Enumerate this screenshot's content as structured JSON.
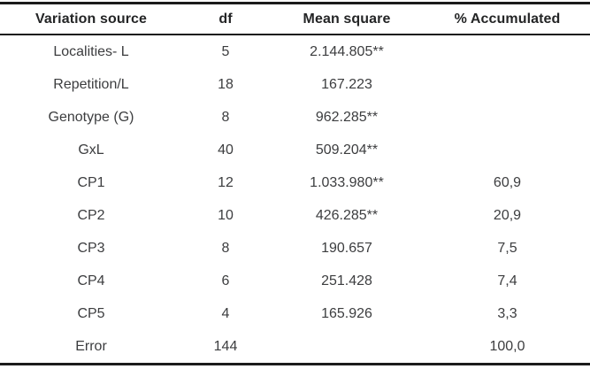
{
  "table": {
    "headers": [
      "Variation source",
      "df",
      "Mean square",
      "% Accumulated"
    ],
    "rows": [
      {
        "source": "Localities- L",
        "df": "5",
        "mean_square": "2.144.805**",
        "pct_accumulated": ""
      },
      {
        "source": "Repetition/L",
        "df": "18",
        "mean_square": "167.223",
        "pct_accumulated": ""
      },
      {
        "source": "Genotype (G)",
        "df": "8",
        "mean_square": "962.285**",
        "pct_accumulated": ""
      },
      {
        "source": "GxL",
        "df": "40",
        "mean_square": "509.204**",
        "pct_accumulated": ""
      },
      {
        "source": "CP1",
        "df": "12",
        "mean_square": "1.033.980**",
        "pct_accumulated": "60,9"
      },
      {
        "source": "CP2",
        "df": "10",
        "mean_square": "426.285**",
        "pct_accumulated": "20,9"
      },
      {
        "source": "CP3",
        "df": "8",
        "mean_square": "190.657",
        "pct_accumulated": "7,5"
      },
      {
        "source": "CP4",
        "df": "6",
        "mean_square": "251.428",
        "pct_accumulated": "7,4"
      },
      {
        "source": "CP5",
        "df": "4",
        "mean_square": "165.926",
        "pct_accumulated": "3,3"
      },
      {
        "source": "Error",
        "df": "144",
        "mean_square": "",
        "pct_accumulated": "100,0"
      }
    ]
  },
  "colors": {
    "background": "#ffffff",
    "rule": "#1b1b1b",
    "header_text": "#242526",
    "body_text": "#3c3d3f"
  }
}
